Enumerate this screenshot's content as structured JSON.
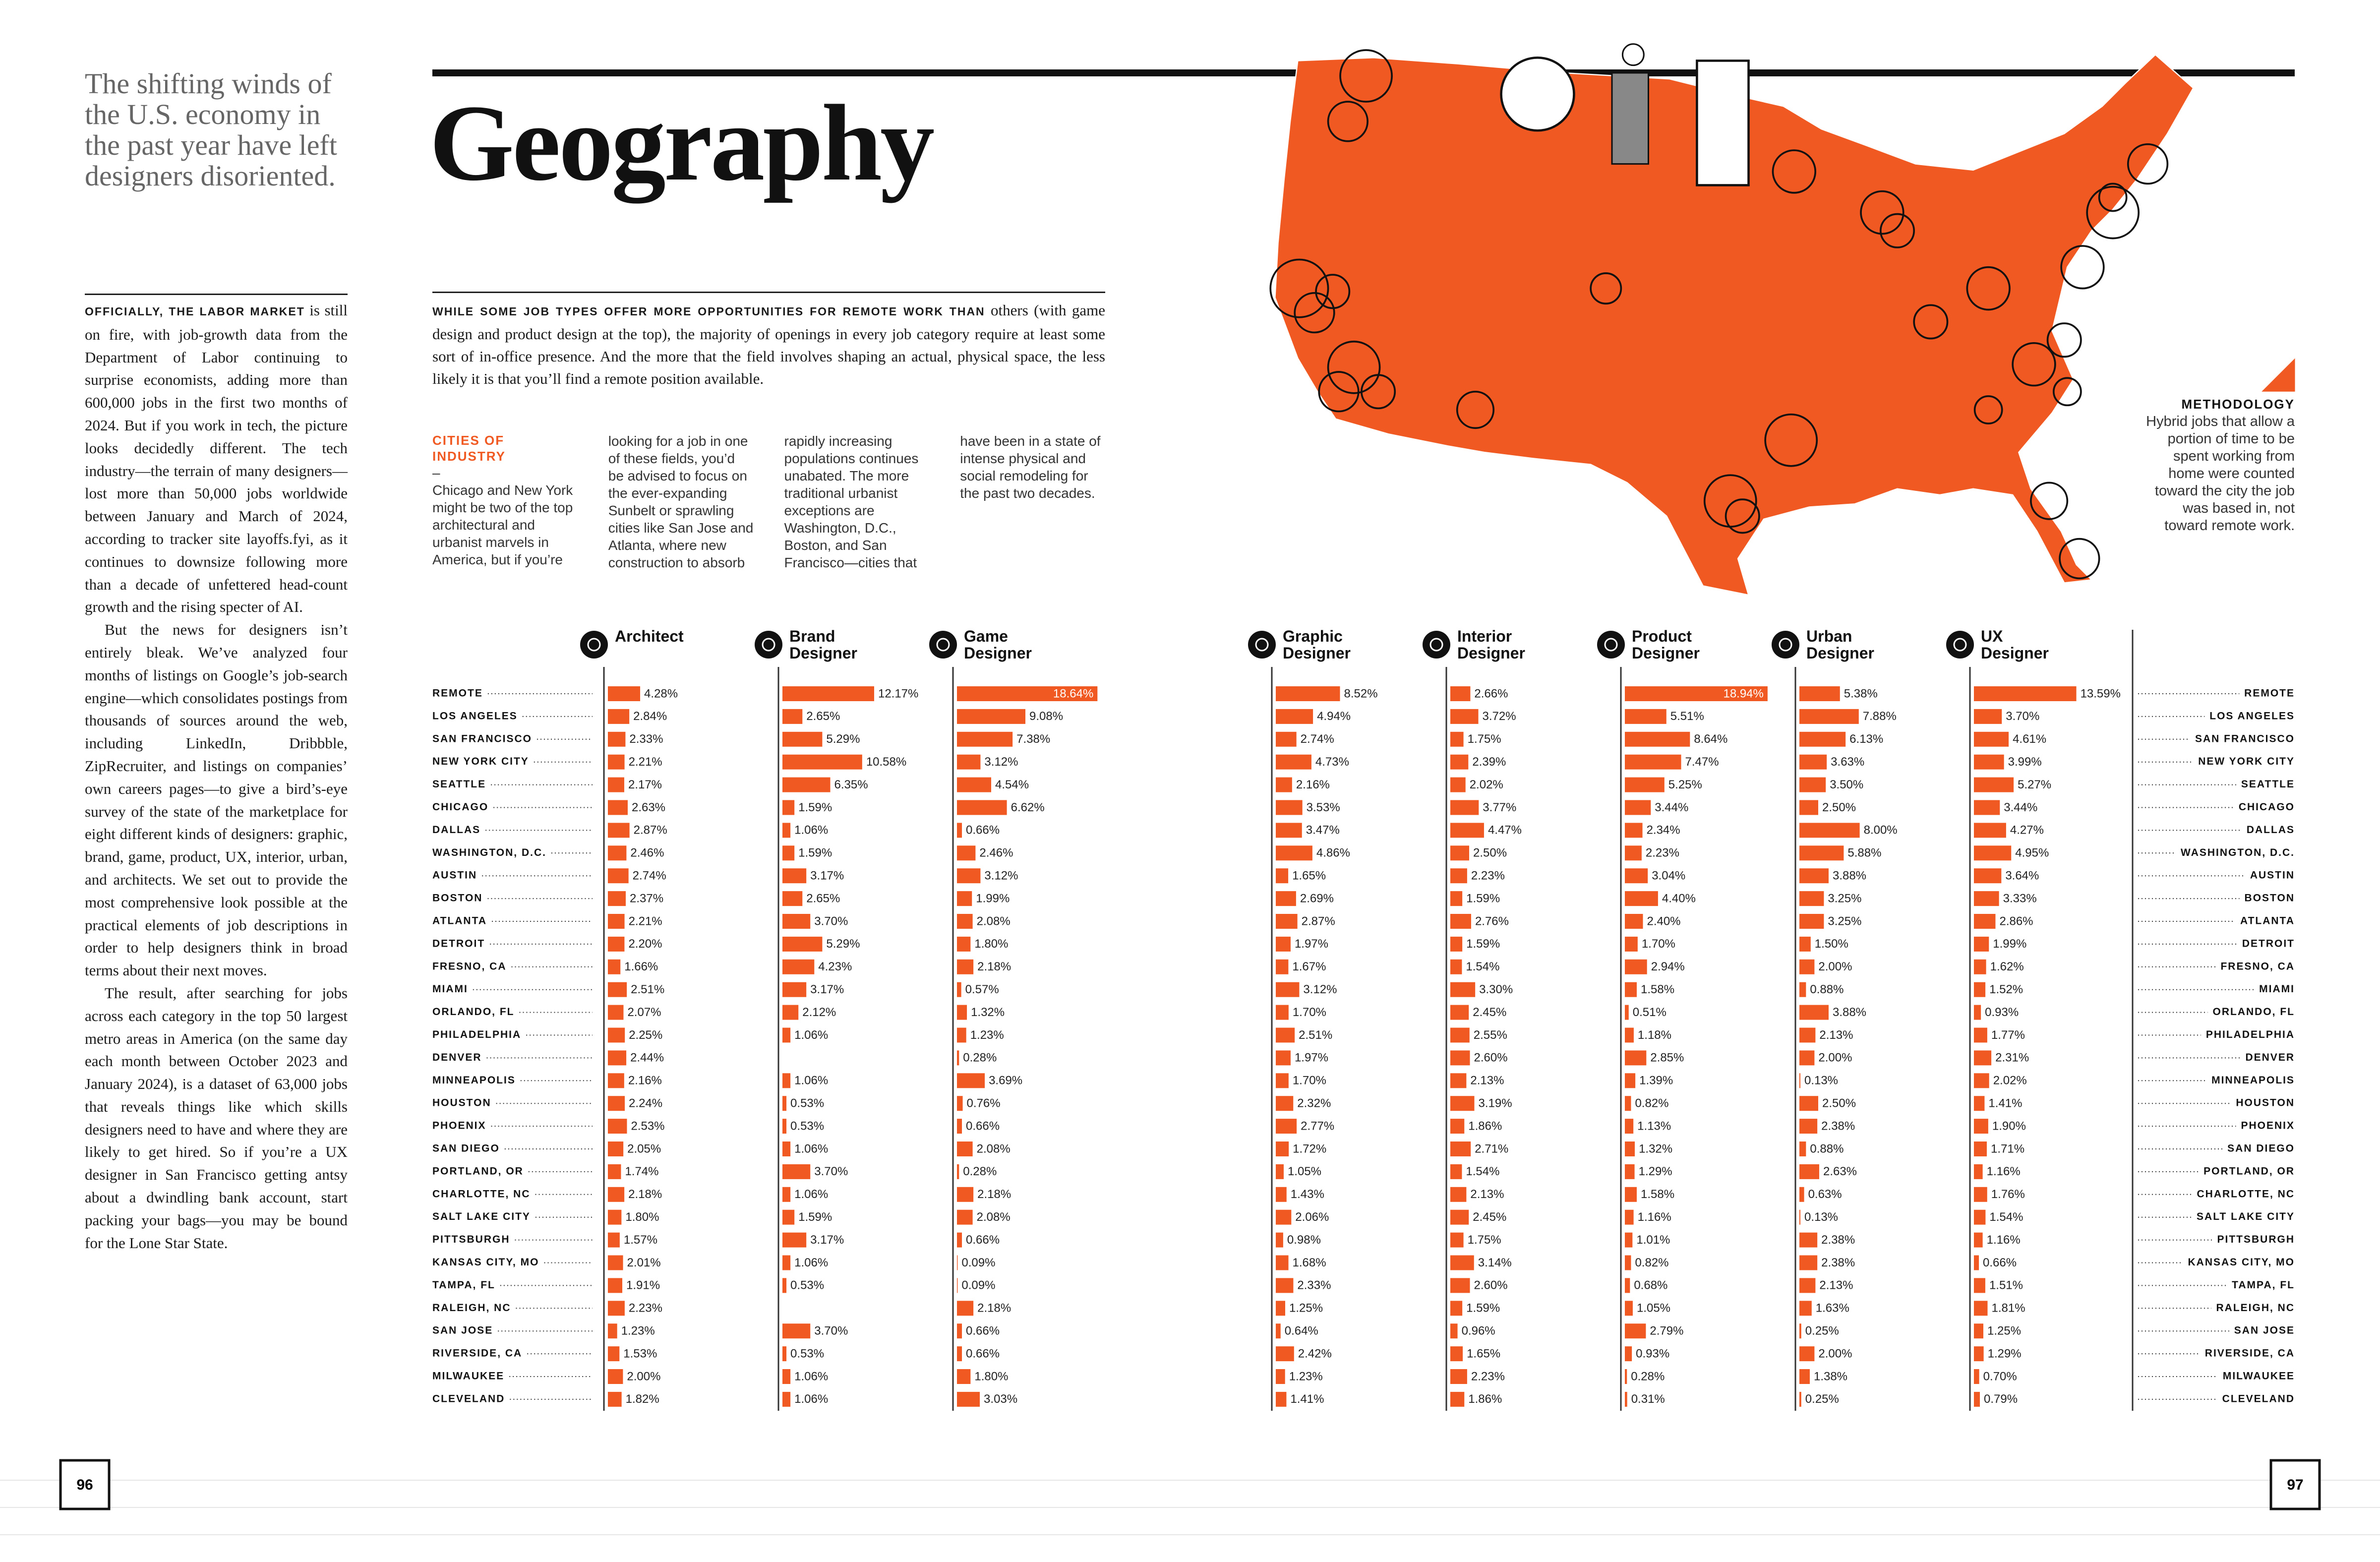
{
  "intro": {
    "headline": "The shifting winds of the U.S. economy in the past year have left designers disoriented.",
    "paragraphs": [
      {
        "lead": "OFFICIALLY, THE LABOR MARKET",
        "text": "is still on fire, with job-growth data from the Department of Labor continuing to surprise economists, adding more than 600,000 jobs in the first two months of 2024. But if you work in tech, the picture looks decidedly different. The tech industry—the terrain of many designers—lost more than 50,000 jobs worldwide between January and March of 2024, according to tracker site layoffs.fyi, as it continues to downsize following more than a decade of unfettered head-count growth and the rising specter of AI."
      },
      {
        "text": "But the news for designers isn’t entirely bleak. We’ve analyzed four months of listings on Google’s job-search engine—which consolidates postings from thousands of sources around the web, including LinkedIn, Dribbble, ZipRecruiter, and listings on companies’ own careers pages—to give a bird’s-eye survey of the state of the marketplace for eight different kinds of designers: graphic, brand, game, product, UX, interior, urban, and architects. We set out to provide the most comprehensive look possible at the practical elements of job descriptions in order to help designers think in broad terms about their next moves."
      },
      {
        "text": "The result, after searching for jobs across each category in the top 50 largest metro areas in America (on the same day each month between October 2023 and January 2024), is a dataset of 63,000 jobs that reveals things like which skills designers need to have and where they are likely to get hired. So if you’re a UX designer in San Francisco getting antsy about a dwindling bank account, start packing your bags—you may be bound for the Lone Star State."
      }
    ]
  },
  "title": "Geography",
  "deck": {
    "lead": "WHILE SOME JOB TYPES OFFER MORE OPPORTUNITIES FOR REMOTE WORK THAN",
    "text": "others (with game design and product design at the top), the majority of openings in every job category require at least some sort of in-office presence. And the more that the field involves shaping an actual, physical space, the less likely it is that you’ll find a remote position available."
  },
  "sidebar": {
    "heading": "CITIES OF INDUSTRY",
    "dash": "–",
    "text": "Chicago and New York might be two of the top architectural and urbanist marvels in America, but if you’re looking for a job in one of these fields, you’d be advised to focus on the ever-expanding Sunbelt or sprawling cities like San Jose and Atlanta, where new construction to absorb rapidly increasing populations continues unabated. The more traditional urbanist exceptions are Washington, D.C., Boston, and San Francisco—cities that have been in a state of intense physical and social remodeling for the past two decades."
  },
  "methodology": {
    "heading": "METHODOLOGY",
    "text": "Hybrid jobs that allow a portion of time to be spent working from home were counted toward the city the job was based in, not toward remote work."
  },
  "page_numbers": [
    "96",
    "97"
  ],
  "chart_data": {
    "type": "bar",
    "orientation": "horizontal",
    "categories": [
      "REMOTE",
      "LOS ANGELES",
      "SAN FRANCISCO",
      "NEW YORK CITY",
      "SEATTLE",
      "CHICAGO",
      "DALLAS",
      "WASHINGTON, D.C.",
      "AUSTIN",
      "BOSTON",
      "ATLANTA",
      "DETROIT",
      "FRESNO, CA",
      "MIAMI",
      "ORLANDO, FL",
      "PHILADELPHIA",
      "DENVER",
      "MINNEAPOLIS",
      "HOUSTON",
      "PHOENIX",
      "SAN DIEGO",
      "PORTLAND, OR",
      "CHARLOTTE, NC",
      "SALT LAKE CITY",
      "PITTSBURGH",
      "KANSAS CITY, MO",
      "TAMPA, FL",
      "RALEIGH, NC",
      "SAN JOSE",
      "RIVERSIDE, CA",
      "MILWAUKEE",
      "CLEVELAND"
    ],
    "series": [
      {
        "name": "Architect",
        "color": "#f05a22",
        "values": [
          4.28,
          2.84,
          2.33,
          2.21,
          2.17,
          2.63,
          2.87,
          2.46,
          2.74,
          2.37,
          2.21,
          2.2,
          1.66,
          2.51,
          2.07,
          2.25,
          2.44,
          2.16,
          2.24,
          2.53,
          2.05,
          1.74,
          2.18,
          1.8,
          1.57,
          2.01,
          1.91,
          2.23,
          1.23,
          1.53,
          2,
          1.82
        ],
        "value_labels": [
          "4.28%",
          "2.84%",
          "2.33%",
          "2.21%",
          "2.17%",
          "2.63%",
          "2.87%",
          "2.46%",
          "2.74%",
          "2.37%",
          "2.21%",
          "2.20%",
          "1.66%",
          "2.51%",
          "2.07%",
          "2.25%",
          "2.44%",
          "2.16%",
          "2.24%",
          "2.53%",
          "2.05%",
          "1.74%",
          "2.18%",
          "1.80%",
          "1.57%",
          "2.01%",
          "1.91%",
          "2.23%",
          "1.23%",
          "1.53%",
          "2.00%",
          "1.82%"
        ]
      },
      {
        "name": "Brand Designer",
        "color": "#f05a22",
        "values": [
          12.17,
          2.65,
          5.29,
          10.58,
          6.35,
          1.59,
          1.06,
          1.59,
          3.17,
          2.65,
          3.7,
          5.29,
          4.23,
          3.17,
          2.12,
          1.06,
          null,
          1.06,
          0.53,
          0.53,
          1.06,
          3.7,
          1.06,
          1.59,
          3.17,
          1.06,
          0.53,
          null,
          3.7,
          0.53,
          1.06,
          1.06
        ],
        "value_labels": [
          "12.17%",
          "2.65%",
          "5.29%",
          "10.58%",
          "6.35%",
          "1.59%",
          "1.06%",
          "1.59%",
          "3.17%",
          "2.65%",
          "3.70%",
          "5.29%",
          "4.23%",
          "3.17%",
          "2.12%",
          "1.06%",
          null,
          "1.06%",
          "0.53%",
          "0.53%",
          "1.06%",
          "3.70%",
          "1.06%",
          "1.59%",
          "3.17%",
          "1.06%",
          "0.53%",
          null,
          "3.70%",
          "0.53%",
          "1.06%",
          "1.06%"
        ]
      },
      {
        "name": "Game Designer",
        "color": "#f05a22",
        "values": [
          18.64,
          9.08,
          7.38,
          3.12,
          4.54,
          6.62,
          0.66,
          2.46,
          3.12,
          1.99,
          2.08,
          1.8,
          2.18,
          0.57,
          1.32,
          1.23,
          0.28,
          3.69,
          0.76,
          0.66,
          2.08,
          0.28,
          2.18,
          2.08,
          0.66,
          0.09,
          0.09,
          2.18,
          0.66,
          0.66,
          1.8,
          3.03
        ],
        "value_labels": [
          "18.64%",
          "9.08%",
          "7.38%",
          "3.12%",
          "4.54%",
          "6.62%",
          "0.66%",
          "2.46%",
          "3.12%",
          "1.99%",
          "2.08%",
          "1.80%",
          "2.18%",
          "0.57%",
          "1.32%",
          "1.23%",
          "0.28%",
          "3.69%",
          "0.76%",
          "0.66%",
          "2.08%",
          "0.28%",
          "2.18%",
          "2.08%",
          "0.66%",
          "0.09%",
          "0.09%",
          "2.18%",
          "0.66%",
          "0.66%",
          "1.80%",
          "3.03%"
        ]
      },
      {
        "name": "Graphic Designer",
        "color": "#f05a22",
        "values": [
          8.52,
          4.94,
          2.74,
          4.73,
          2.16,
          3.53,
          3.47,
          4.86,
          1.65,
          2.69,
          2.87,
          1.97,
          1.67,
          3.12,
          1.7,
          2.51,
          1.97,
          1.7,
          2.32,
          2.77,
          1.72,
          1.05,
          1.43,
          2.06,
          0.98,
          1.68,
          2.33,
          1.25,
          0.64,
          2.42,
          1.23,
          1.41
        ],
        "value_labels": [
          "8.52%",
          "4.94%",
          "2.74%",
          "4.73%",
          "2.16%",
          "3.53%",
          "3.47%",
          "4.86%",
          "1.65%",
          "2.69%",
          "2.87%",
          "1.97%",
          "1.67%",
          "3.12%",
          "1.70%",
          "2.51%",
          "1.97%",
          "1.70%",
          "2.32%",
          "2.77%",
          "1.72%",
          "1.05%",
          "1.43%",
          "2.06%",
          "0.98%",
          "1.68%",
          "2.33%",
          "1.25%",
          "0.64%",
          "2.42%",
          "1.23%",
          "1.41%"
        ]
      },
      {
        "name": "Interior Designer",
        "color": "#f05a22",
        "values": [
          2.66,
          3.72,
          1.75,
          2.39,
          2.02,
          3.77,
          4.47,
          2.5,
          2.23,
          1.59,
          2.76,
          1.59,
          1.54,
          3.3,
          2.45,
          2.55,
          2.6,
          2.13,
          3.19,
          1.86,
          2.71,
          1.54,
          2.13,
          2.45,
          1.75,
          3.14,
          2.6,
          1.59,
          0.96,
          1.65,
          2.23,
          1.86
        ],
        "value_labels": [
          "2.66%",
          "3.72%",
          "1.75%",
          "2.39%",
          "2.02%",
          "3.77%",
          "4.47%",
          "2.50%",
          "2.23%",
          "1.59%",
          "2.76%",
          "1.59%",
          "1.54%",
          "3.30%",
          "2.45%",
          "2.55%",
          "2.60%",
          "2.13%",
          "3.19%",
          "1.86%",
          "2.71%",
          "1.54%",
          "2.13%",
          "2.45%",
          "1.75%",
          "3.14%",
          "2.60%",
          "1.59%",
          "0.96%",
          "1.65%",
          "2.23%",
          "1.86%"
        ]
      },
      {
        "name": "Product Designer",
        "color": "#f05a22",
        "values": [
          18.94,
          5.51,
          8.64,
          7.47,
          5.25,
          3.44,
          2.34,
          2.23,
          3.04,
          4.4,
          2.4,
          1.7,
          2.94,
          1.58,
          0.51,
          1.18,
          2.85,
          1.39,
          0.82,
          1.13,
          1.32,
          1.29,
          1.58,
          1.16,
          1.01,
          0.82,
          0.68,
          1.05,
          2.79,
          0.93,
          0.28,
          0.31
        ],
        "value_labels": [
          "18.94%",
          "5.51%",
          "8.64%",
          "7.47%",
          "5.25%",
          "3.44%",
          "2.34%",
          "2.23%",
          "3.04%",
          "4.40%",
          "2.40%",
          "1.70%",
          "2.94%",
          "1.58%",
          "0.51%",
          "1.18%",
          "2.85%",
          "1.39%",
          "0.82%",
          "1.13%",
          "1.32%",
          "1.29%",
          "1.58%",
          "1.16%",
          "1.01%",
          "0.82%",
          "0.68%",
          "1.05%",
          "2.79%",
          "0.93%",
          "0.28%",
          "0.31%"
        ]
      },
      {
        "name": "Urban Designer",
        "color": "#f05a22",
        "values": [
          5.38,
          7.88,
          6.13,
          3.63,
          3.5,
          2.5,
          8,
          5.88,
          3.88,
          3.25,
          3.25,
          1.5,
          2,
          0.88,
          3.88,
          2.13,
          2,
          0.13,
          2.5,
          2.38,
          0.88,
          2.63,
          0.63,
          0.13,
          2.38,
          2.38,
          2.13,
          1.63,
          0.25,
          2,
          1.38,
          0.25
        ],
        "value_labels": [
          "5.38%",
          "7.88%",
          "6.13%",
          "3.63%",
          "3.50%",
          "2.50%",
          "8.00%",
          "5.88%",
          "3.88%",
          "3.25%",
          "3.25%",
          "1.50%",
          "2.00%",
          "0.88%",
          "3.88%",
          "2.13%",
          "2.00%",
          "0.13%",
          "2.50%",
          "2.38%",
          "0.88%",
          "2.63%",
          "0.63%",
          "0.13%",
          "2.38%",
          "2.38%",
          "2.13%",
          "1.63%",
          "0.25%",
          "2.00%",
          "1.38%",
          "0.25%"
        ]
      },
      {
        "name": "UX Designer",
        "color": "#f05a22",
        "values": [
          13.59,
          3.7,
          4.61,
          3.99,
          5.27,
          3.44,
          4.27,
          4.95,
          3.64,
          3.33,
          2.86,
          1.99,
          1.62,
          1.52,
          0.93,
          1.77,
          2.31,
          2.02,
          1.41,
          1.9,
          1.71,
          1.16,
          1.76,
          1.54,
          1.16,
          0.66,
          1.51,
          1.81,
          1.25,
          1.29,
          0.7,
          0.79
        ],
        "value_labels": [
          "13.59%",
          "3.70%",
          "4.61%",
          "3.99%",
          "5.27%",
          "3.44%",
          "4.27%",
          "4.95%",
          "3.64%",
          "3.33%",
          "2.86%",
          "1.99%",
          "1.62%",
          "1.52%",
          "0.93%",
          "1.77%",
          "2.31%",
          "2.02%",
          "1.41%",
          "1.90%",
          "1.71%",
          "1.16%",
          "1.76%",
          "1.54%",
          "1.16%",
          "0.66%",
          "1.51%",
          "1.81%",
          "1.25%",
          "1.29%",
          "0.70%",
          "0.79%"
        ]
      }
    ]
  }
}
